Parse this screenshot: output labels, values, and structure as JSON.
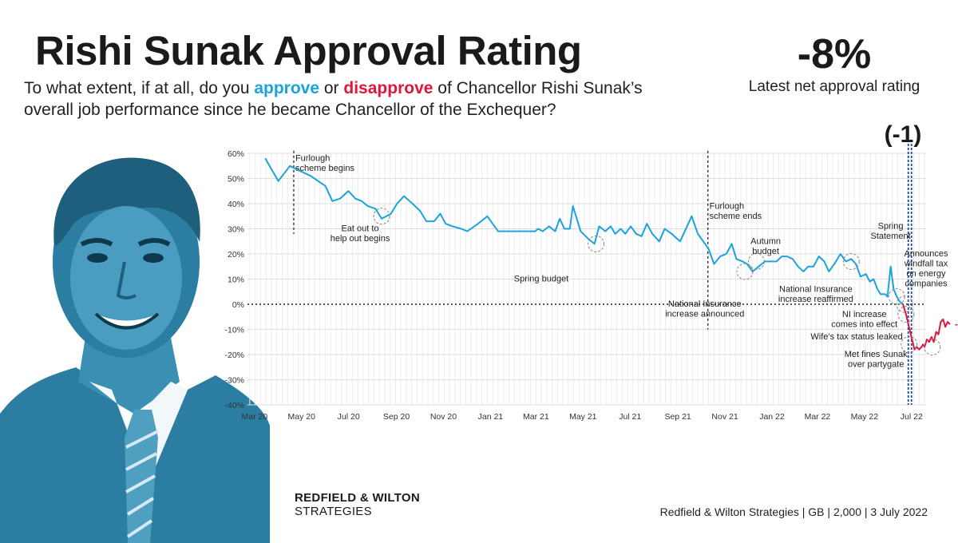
{
  "header": {
    "title": "Rishi Sunak Approval Rating",
    "subtitle_parts": [
      {
        "text": "To what extent, if at all, do you ",
        "style": "plain"
      },
      {
        "text": "approve",
        "style": "approve"
      },
      {
        "text": " or ",
        "style": "plain"
      },
      {
        "text": "disapprove",
        "style": "disapprove"
      },
      {
        "text": " of Chancellor Rishi Sunak’s overall job performance since he became Chancellor of the Exchequer?",
        "style": "plain"
      }
    ],
    "latest_value": "-8%",
    "latest_label": "Latest net approval rating",
    "change": "(-1)"
  },
  "colors": {
    "approve": "#1aa3dd",
    "disapprove": "#e0163a",
    "portrait": "#2b7ea1"
  },
  "icons": {
    "portrait": "rishi-sunak-portrait-icon"
  },
  "footer": {
    "brand_line1": "REDFIELD & WILTON",
    "brand_line2": "STRATEGIES",
    "source": "Redfield & Wilton Strategies | GB | 2,000 | 3 July 2022"
  },
  "chart_data": {
    "type": "line",
    "ylim": [
      -40,
      60
    ],
    "yticks": [
      60,
      50,
      40,
      30,
      20,
      10,
      0,
      -10,
      -20,
      -30,
      -40
    ],
    "ytick_labels": [
      "60%",
      "50%",
      "40%",
      "30%",
      "20%",
      "10%",
      "0%",
      "-10%",
      "-20%",
      "-30%",
      "-40%"
    ],
    "xlim": [
      "2020-02-25",
      "2022-07-24"
    ],
    "xticks": [
      "2020-03-01",
      "2020-05-01",
      "2020-07-01",
      "2020-09-01",
      "2020-11-01",
      "2021-01-01",
      "2021-03-01",
      "2021-05-01",
      "2021-07-01",
      "2021-09-01",
      "2021-11-01",
      "2022-01-01",
      "2022-03-01",
      "2022-05-01",
      "2022-07-01"
    ],
    "xtick_labels": [
      "Mar 20",
      "May 20",
      "Jul 20",
      "Sep 20",
      "Nov 20",
      "Jan 21",
      "Mar 21",
      "May 21",
      "Jul 21",
      "Sep 21",
      "Nov 21",
      "Jan 22",
      "Mar 22",
      "May 22",
      "Jul 22"
    ],
    "grid": true,
    "series": [
      {
        "points": [
          [
            "2020-03-19",
            58
          ],
          [
            "2020-04-05",
            49
          ],
          [
            "2020-04-20",
            55
          ],
          [
            "2020-05-03",
            53
          ],
          [
            "2020-05-17",
            51
          ],
          [
            "2020-06-05",
            47
          ],
          [
            "2020-06-14",
            41
          ],
          [
            "2020-06-24",
            42
          ],
          [
            "2020-07-05",
            45
          ],
          [
            "2020-07-14",
            42
          ],
          [
            "2020-07-22",
            41
          ],
          [
            "2020-07-30",
            39
          ],
          [
            "2020-08-09",
            38
          ],
          [
            "2020-08-17",
            34
          ],
          [
            "2020-08-29",
            36
          ],
          [
            "2020-09-06",
            40
          ],
          [
            "2020-09-15",
            43
          ],
          [
            "2020-09-26",
            40
          ],
          [
            "2020-10-06",
            37
          ],
          [
            "2020-10-14",
            33
          ],
          [
            "2020-10-24",
            33
          ],
          [
            "2020-11-01",
            36
          ],
          [
            "2020-11-08",
            32
          ],
          [
            "2020-11-17",
            31
          ],
          [
            "2020-11-28",
            30
          ],
          [
            "2020-12-06",
            29
          ],
          [
            "2020-12-20",
            32
          ],
          [
            "2021-01-01",
            35
          ],
          [
            "2021-01-15",
            29
          ],
          [
            "2021-02-02",
            29
          ],
          [
            "2021-02-20",
            29
          ],
          [
            "2021-03-04",
            29
          ],
          [
            "2021-03-08",
            30
          ],
          [
            "2021-03-14",
            29
          ],
          [
            "2021-03-22",
            31
          ],
          [
            "2021-03-30",
            29
          ],
          [
            "2021-04-05",
            34
          ],
          [
            "2021-04-11",
            30
          ],
          [
            "2021-04-18",
            30
          ],
          [
            "2021-04-22",
            39
          ],
          [
            "2021-05-02",
            29
          ],
          [
            "2021-05-12",
            26
          ],
          [
            "2021-05-20",
            24
          ],
          [
            "2021-05-26",
            31
          ],
          [
            "2021-06-03",
            29
          ],
          [
            "2021-06-10",
            31
          ],
          [
            "2021-06-16",
            28
          ],
          [
            "2021-06-23",
            30
          ],
          [
            "2021-06-29",
            28
          ],
          [
            "2021-07-06",
            31
          ],
          [
            "2021-07-13",
            28
          ],
          [
            "2021-07-20",
            27
          ],
          [
            "2021-07-27",
            32
          ],
          [
            "2021-08-03",
            28
          ],
          [
            "2021-08-12",
            25
          ],
          [
            "2021-08-19",
            30
          ],
          [
            "2021-08-28",
            28
          ],
          [
            "2021-09-08",
            25
          ],
          [
            "2021-09-17",
            31
          ],
          [
            "2021-09-23",
            35
          ],
          [
            "2021-10-01",
            28
          ],
          [
            "2021-10-08",
            25
          ],
          [
            "2021-10-15",
            22
          ],
          [
            "2021-10-22",
            16
          ],
          [
            "2021-10-30",
            19
          ],
          [
            "2021-11-07",
            20
          ],
          [
            "2021-11-14",
            24
          ],
          [
            "2021-11-20",
            18
          ],
          [
            "2021-11-28",
            17
          ],
          [
            "2021-12-04",
            16
          ],
          [
            "2021-12-11",
            13
          ],
          [
            "2021-12-19",
            15
          ],
          [
            "2021-12-27",
            17
          ],
          [
            "2022-01-03",
            17
          ],
          [
            "2022-01-11",
            17
          ],
          [
            "2022-01-18",
            19
          ],
          [
            "2022-01-25",
            19
          ],
          [
            "2022-02-01",
            18
          ],
          [
            "2022-02-08",
            15
          ],
          [
            "2022-02-15",
            13
          ],
          [
            "2022-02-21",
            15
          ],
          [
            "2022-02-28",
            15
          ],
          [
            "2022-03-07",
            19
          ],
          [
            "2022-03-14",
            17
          ],
          [
            "2022-03-20",
            13
          ],
          [
            "2022-03-27",
            16
          ],
          [
            "2022-04-04",
            20
          ],
          [
            "2022-04-11",
            17
          ],
          [
            "2022-04-18",
            18
          ],
          [
            "2022-04-24",
            16
          ],
          [
            "2022-04-30",
            11
          ],
          [
            "2022-05-07",
            12
          ],
          [
            "2022-05-12",
            9
          ],
          [
            "2022-05-17",
            10
          ],
          [
            "2022-05-22",
            6
          ],
          [
            "2022-05-26",
            4
          ],
          [
            "2022-06-01",
            4
          ],
          [
            "2022-06-04",
            3
          ],
          [
            "2022-06-08",
            15
          ],
          [
            "2022-06-12",
            6
          ],
          [
            "2022-06-16",
            3
          ],
          [
            "2022-06-20",
            1
          ],
          [
            "2022-06-24",
            0
          ]
        ]
      },
      {
        "points": [
          [
            "2022-06-24",
            0
          ],
          [
            "2022-06-28",
            -4
          ],
          [
            "2022-07-01",
            -8
          ],
          [
            "2022-07-05",
            -13
          ],
          [
            "2022-07-09",
            -18
          ],
          [
            "2022-07-12",
            -17
          ],
          [
            "2022-07-15",
            -18
          ],
          [
            "2022-07-18",
            -17
          ],
          [
            "2022-07-20",
            -16
          ],
          [
            "2022-07-22",
            -17
          ],
          [
            "2022-07-25",
            -14
          ],
          [
            "2022-07-28",
            -15
          ],
          [
            "2022-07-31",
            -13
          ],
          [
            "2022-08-03",
            -15
          ],
          [
            "2022-08-06",
            -11
          ],
          [
            "2022-08-09",
            -12
          ],
          [
            "2022-08-12",
            -7
          ],
          [
            "2022-08-15",
            -6
          ],
          [
            "2022-08-18",
            -9
          ],
          [
            "2022-08-21",
            -7
          ],
          [
            "2022-08-24",
            -8
          ]
        ]
      }
    ],
    "end_label": "-8%",
    "reference_lines": [
      {
        "date": "2020-04-25",
        "label_lines": [
          "Furlough",
          "scheme begins"
        ],
        "label_y": 57
      },
      {
        "date": "2021-10-14",
        "label_lines": [
          "Furlough",
          "scheme ends"
        ],
        "label_y": 38
      }
    ],
    "current_marker_date": "2022-07-03",
    "annotations": [
      {
        "lines": [
          "Eat out to",
          "help out  begins"
        ],
        "label_date": "2020-07-20",
        "label_y": 29,
        "point_date": "2020-08-17",
        "point_y": 35
      },
      {
        "lines": [
          "Spring budget"
        ],
        "label_date": "2021-03-12",
        "label_y": 9,
        "point_date": "2021-05-22",
        "point_y": 24
      },
      {
        "lines": [
          "National Insurance",
          "increase announced"
        ],
        "label_date": "2021-10-10",
        "label_y": -1,
        "point_date": "2021-12-01",
        "point_y": 13
      },
      {
        "lines": [
          "Autumn",
          "budget"
        ],
        "label_date": "2021-12-28",
        "label_y": 24,
        "point_date": "2021-12-16",
        "point_y": 17
      },
      {
        "lines": [
          "National Insurance",
          "increase reaffirmed"
        ],
        "label_date": "2022-03-03",
        "label_y": 5,
        "point_date": "2022-04-18",
        "point_y": 17
      },
      {
        "lines": [
          "Spring",
          "Statement"
        ],
        "label_date": "2022-06-08",
        "label_y": 30,
        "point_date": "2022-06-16",
        "point_y": 3
      },
      {
        "lines": [
          "NI increase",
          "comes into effect"
        ],
        "label_date": "2022-05-05",
        "label_y": -5,
        "point_date": "2022-06-26",
        "point_y": 0
      },
      {
        "lines": [
          "Wife’s tax status leaked"
        ],
        "label_date": "2022-04-25",
        "label_y": -14,
        "point_date": "2022-06-28",
        "point_y": -4
      },
      {
        "lines": [
          "Met fines Sunak",
          "over partygate"
        ],
        "label_date": "2022-05-20",
        "label_y": -21,
        "point_date": "2022-07-02",
        "point_y": -16
      },
      {
        "lines": [
          "Announces",
          "windfall tax",
          "on energy",
          "companies"
        ],
        "label_date": "2022-07-24",
        "label_y": 19,
        "point_date": "2022-08-01",
        "point_y": -17
      }
    ]
  }
}
